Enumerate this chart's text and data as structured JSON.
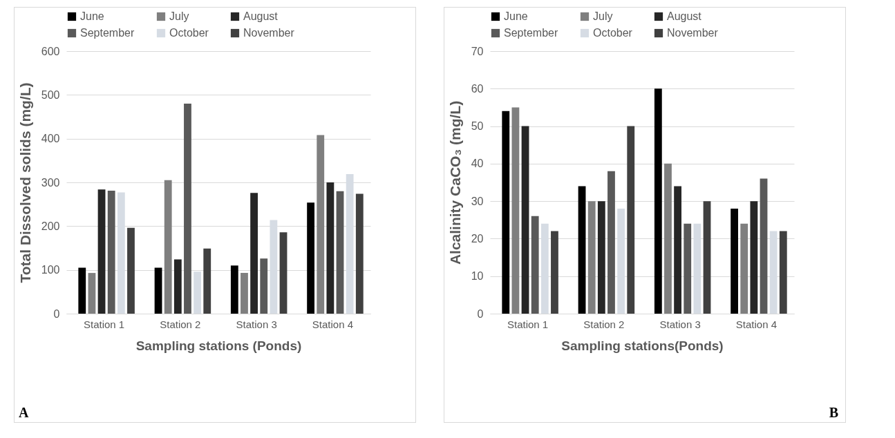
{
  "chart_data": [
    {
      "type": "bar",
      "xlabel": "Sampling stations (Ponds)",
      "ylabel": "Total Dissolved solids (mg/L)",
      "categories": [
        "Station 1",
        "Station 2",
        "Station 3",
        "Station 4"
      ],
      "series": [
        {
          "name": "June",
          "color": "#000000",
          "values": [
            105,
            105,
            110,
            254
          ]
        },
        {
          "name": "July",
          "color": "#7f7f7f",
          "values": [
            93,
            305,
            93,
            408
          ]
        },
        {
          "name": "August",
          "color": "#262626",
          "values": [
            284,
            124,
            276,
            300
          ]
        },
        {
          "name": "September",
          "color": "#595959",
          "values": [
            281,
            480,
            126,
            280
          ]
        },
        {
          "name": "October",
          "color": "#d6dce4",
          "values": [
            277,
            96,
            214,
            319
          ]
        },
        {
          "name": "November",
          "color": "#404040",
          "values": [
            196,
            149,
            186,
            274
          ]
        }
      ],
      "ylim": [
        0,
        600
      ],
      "yticks": [
        0,
        100,
        200,
        300,
        400,
        500,
        600
      ],
      "grid": "y",
      "legend": "top",
      "annotations": [
        "A"
      ]
    },
    {
      "type": "bar",
      "xlabel": "Sampling stations(Ponds)",
      "ylabel": "Alcalinity CaCO₃ (mg/L)",
      "categories": [
        "Station 1",
        "Station 2",
        "Station 3",
        "Station 4"
      ],
      "series": [
        {
          "name": "June",
          "color": "#000000",
          "values": [
            54,
            34,
            60,
            28
          ]
        },
        {
          "name": "July",
          "color": "#7f7f7f",
          "values": [
            55,
            30,
            40,
            24
          ]
        },
        {
          "name": "August",
          "color": "#262626",
          "values": [
            50,
            30,
            34,
            30
          ]
        },
        {
          "name": "September",
          "color": "#595959",
          "values": [
            26,
            38,
            24,
            36
          ]
        },
        {
          "name": "October",
          "color": "#d6dce4",
          "values": [
            24,
            28,
            24,
            22
          ]
        },
        {
          "name": "November",
          "color": "#404040",
          "values": [
            22,
            50,
            30,
            22
          ]
        }
      ],
      "ylim": [
        0,
        70
      ],
      "yticks": [
        0,
        10,
        20,
        30,
        40,
        50,
        60,
        70
      ],
      "grid": "y",
      "legend": "top",
      "annotations": [
        "B"
      ]
    }
  ]
}
